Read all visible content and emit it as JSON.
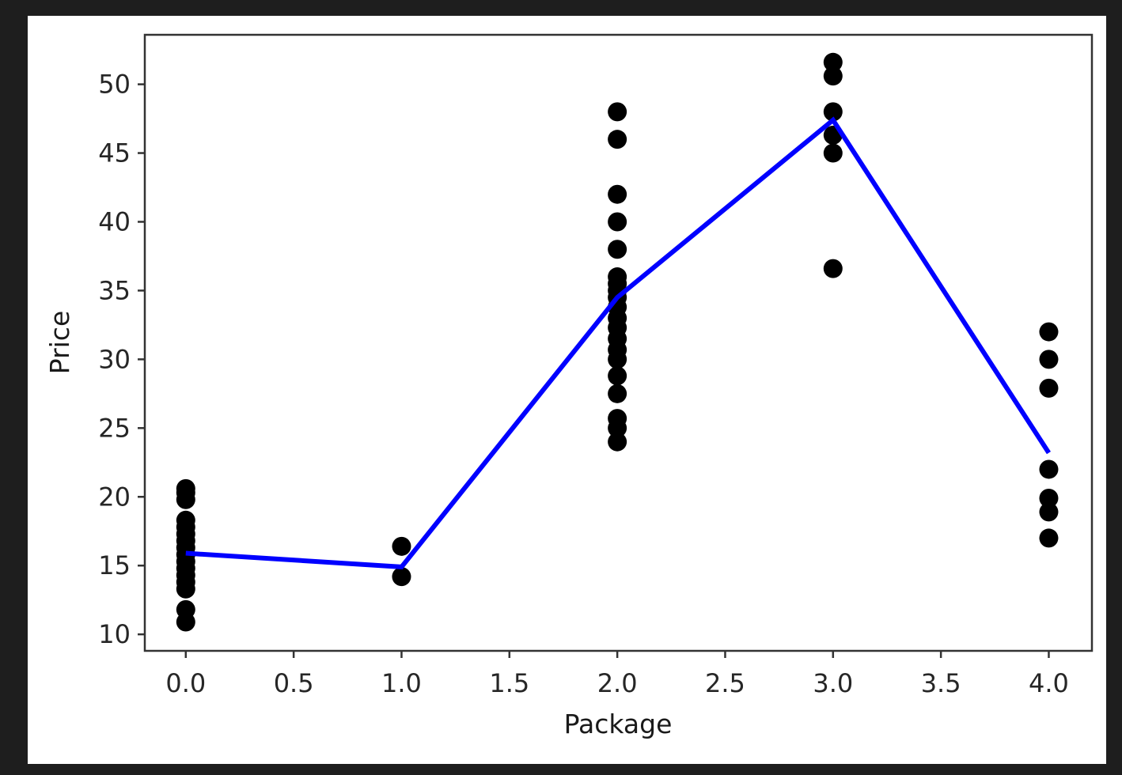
{
  "chart_data": {
    "type": "scatter",
    "title": "",
    "xlabel": "Package",
    "ylabel": "Price",
    "xlim": [
      -0.19,
      4.2
    ],
    "ylim": [
      8.8,
      53.6
    ],
    "grid": false,
    "legend": "none",
    "x_ticks": [
      {
        "value": 0.0,
        "label": "0.0"
      },
      {
        "value": 0.5,
        "label": "0.5"
      },
      {
        "value": 1.0,
        "label": "1.0"
      },
      {
        "value": 1.5,
        "label": "1.5"
      },
      {
        "value": 2.0,
        "label": "2.0"
      },
      {
        "value": 2.5,
        "label": "2.5"
      },
      {
        "value": 3.0,
        "label": "3.0"
      },
      {
        "value": 3.5,
        "label": "3.5"
      },
      {
        "value": 4.0,
        "label": "4.0"
      }
    ],
    "y_ticks": [
      {
        "value": 10,
        "label": "10"
      },
      {
        "value": 15,
        "label": "15"
      },
      {
        "value": 20,
        "label": "20"
      },
      {
        "value": 25,
        "label": "25"
      },
      {
        "value": 30,
        "label": "30"
      },
      {
        "value": 35,
        "label": "35"
      },
      {
        "value": 40,
        "label": "40"
      },
      {
        "value": 45,
        "label": "45"
      },
      {
        "value": 50,
        "label": "50"
      }
    ],
    "series": [
      {
        "kind": "scatter",
        "color": "#000000",
        "points": [
          [
            0,
            10.9
          ],
          [
            0,
            11.8
          ],
          [
            0,
            13.3
          ],
          [
            0,
            13.8
          ],
          [
            0,
            14.3
          ],
          [
            0,
            14.8
          ],
          [
            0,
            15.3
          ],
          [
            0,
            15.8
          ],
          [
            0,
            16.3
          ],
          [
            0,
            16.8
          ],
          [
            0,
            17.3
          ],
          [
            0,
            17.8
          ],
          [
            0,
            18.3
          ],
          [
            0,
            19.8
          ],
          [
            0,
            20.3
          ],
          [
            0,
            20.6
          ],
          [
            1,
            14.2
          ],
          [
            1,
            16.4
          ],
          [
            2,
            24.0
          ],
          [
            2,
            25.0
          ],
          [
            2,
            25.7
          ],
          [
            2,
            27.5
          ],
          [
            2,
            28.8
          ],
          [
            2,
            30.0
          ],
          [
            2,
            30.7
          ],
          [
            2,
            31.5
          ],
          [
            2,
            32.3
          ],
          [
            2,
            33.0
          ],
          [
            2,
            33.8
          ],
          [
            2,
            34.5
          ],
          [
            2,
            35.0
          ],
          [
            2,
            35.5
          ],
          [
            2,
            36.0
          ],
          [
            2,
            38.0
          ],
          [
            2,
            40.0
          ],
          [
            2,
            42.0
          ],
          [
            2,
            46.0
          ],
          [
            2,
            48.0
          ],
          [
            3,
            36.6
          ],
          [
            3,
            45.0
          ],
          [
            3,
            46.3
          ],
          [
            3,
            48.0
          ],
          [
            3,
            50.6
          ],
          [
            3,
            51.6
          ],
          [
            4,
            17.0
          ],
          [
            4,
            18.9
          ],
          [
            4,
            19.9
          ],
          [
            4,
            22.0
          ],
          [
            4,
            27.9
          ],
          [
            4,
            30.0
          ],
          [
            4,
            32.0
          ]
        ]
      },
      {
        "kind": "line",
        "color": "#0000ff",
        "x": [
          0,
          1,
          2,
          3,
          4
        ],
        "y": [
          15.9,
          14.9,
          34.5,
          47.4,
          23.2
        ]
      }
    ]
  }
}
